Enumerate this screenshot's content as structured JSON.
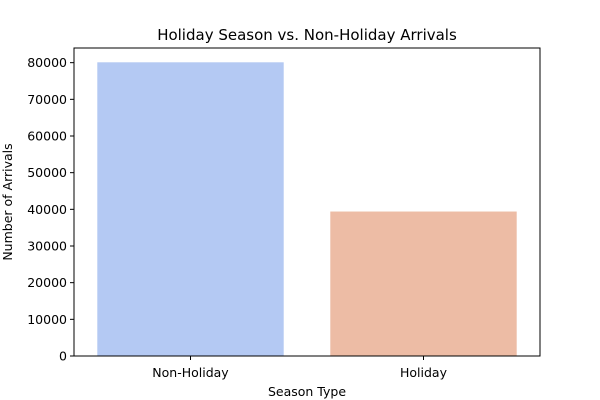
{
  "chart_data": {
    "type": "bar",
    "title": "Holiday Season vs. Non-Holiday Arrivals",
    "xlabel": "Season Type",
    "ylabel": "Number of Arrivals",
    "categories": [
      "Non-Holiday",
      "Holiday"
    ],
    "values": [
      80100,
      39400
    ],
    "colors": [
      "#b4c9f3",
      "#edbca5"
    ],
    "ylim": [
      0,
      84000
    ],
    "yticks": [
      0,
      10000,
      20000,
      30000,
      40000,
      50000,
      60000,
      70000,
      80000
    ],
    "grid": false,
    "legend": "none"
  }
}
